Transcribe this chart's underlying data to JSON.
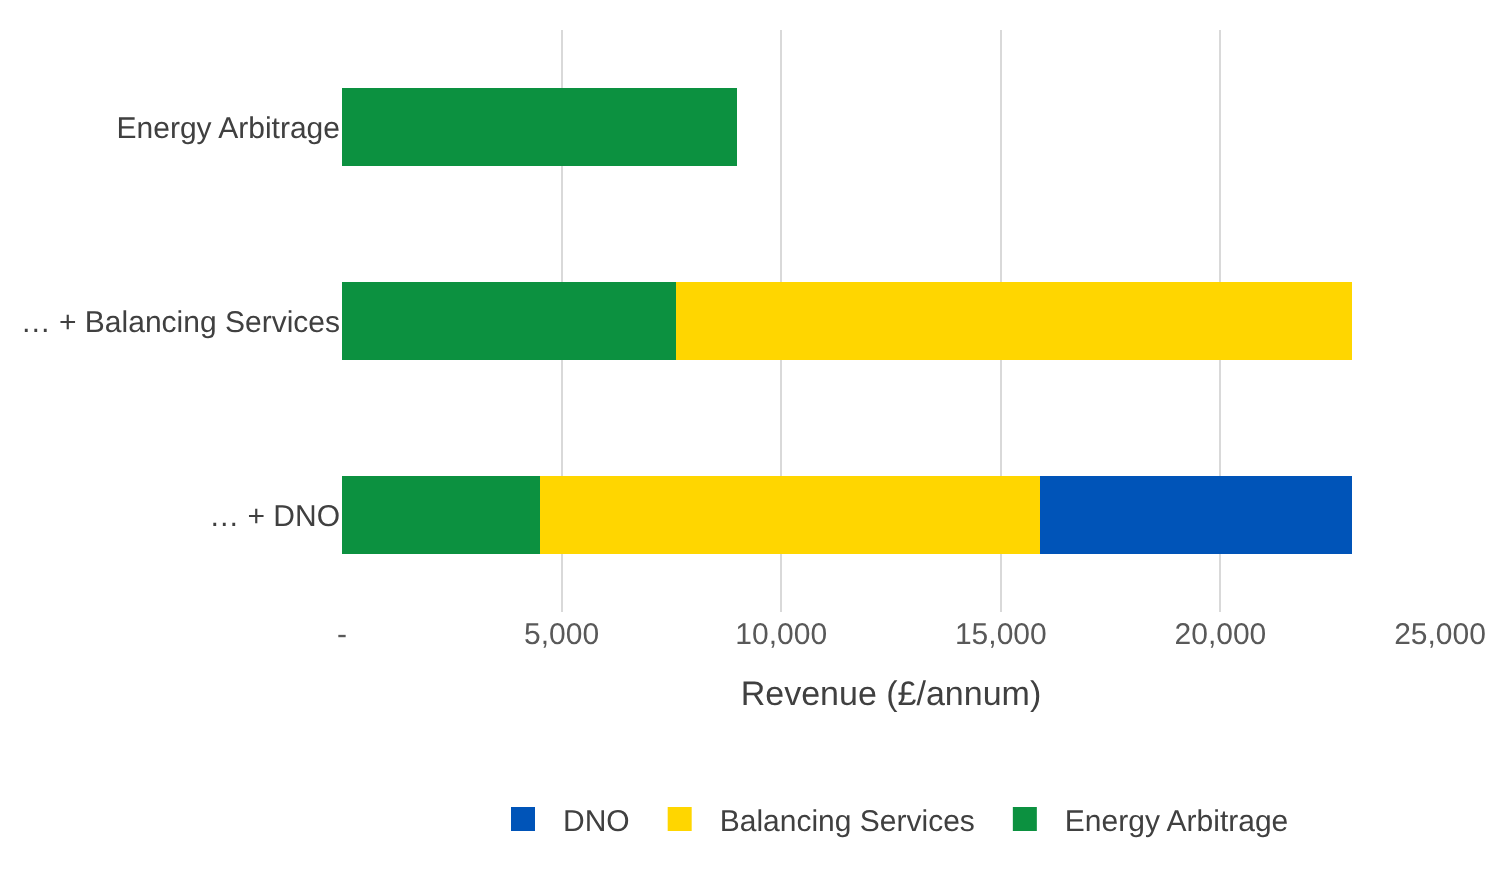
{
  "chart_data": {
    "type": "bar",
    "orientation": "horizontal",
    "stacked": true,
    "categories": [
      "Energy Arbitrage",
      "… + Balancing Services",
      "… + DNO"
    ],
    "series": [
      {
        "name": "Energy Arbitrage",
        "color": "#0c9140",
        "values": [
          9000,
          7600,
          4500
        ]
      },
      {
        "name": "Balancing Services",
        "color": "#ffd600",
        "values": [
          null,
          15400,
          11400
        ]
      },
      {
        "name": "DNO",
        "color": "#0054b8",
        "values": [
          null,
          null,
          7100
        ]
      }
    ],
    "xlabel": "Revenue (£/annum)",
    "xlim": [
      0,
      25000
    ],
    "xticks": [
      {
        "value": 0,
        "label": "-"
      },
      {
        "value": 5000,
        "label": "5,000"
      },
      {
        "value": 10000,
        "label": "10,000"
      },
      {
        "value": 15000,
        "label": "15,000"
      },
      {
        "value": 20000,
        "label": "20,000"
      },
      {
        "value": 25000,
        "label": "25,000"
      }
    ],
    "grid": "x",
    "legend": "bottom"
  }
}
